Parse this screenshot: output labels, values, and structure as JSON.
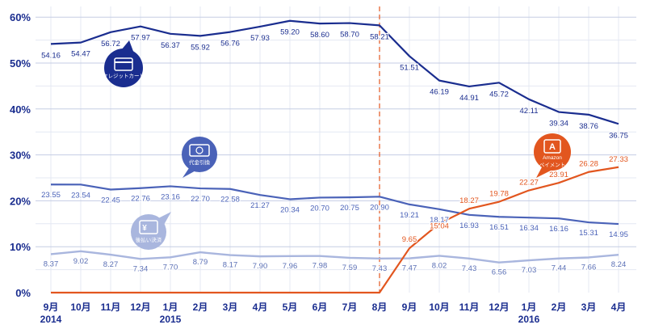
{
  "chart_data": {
    "type": "line",
    "categories": [
      {
        "month": "9月",
        "year": "2014"
      },
      {
        "month": "10月",
        "year": ""
      },
      {
        "month": "11月",
        "year": ""
      },
      {
        "month": "12月",
        "year": ""
      },
      {
        "month": "1月",
        "year": "2015"
      },
      {
        "month": "2月",
        "year": ""
      },
      {
        "month": "3月",
        "year": ""
      },
      {
        "month": "4月",
        "year": ""
      },
      {
        "month": "5月",
        "year": ""
      },
      {
        "month": "6月",
        "year": ""
      },
      {
        "month": "7月",
        "year": ""
      },
      {
        "month": "8月",
        "year": ""
      },
      {
        "month": "9月",
        "year": ""
      },
      {
        "month": "10月",
        "year": ""
      },
      {
        "month": "11月",
        "year": ""
      },
      {
        "month": "12月",
        "year": ""
      },
      {
        "month": "1月",
        "year": "2016"
      },
      {
        "month": "2月",
        "year": ""
      },
      {
        "month": "3月",
        "year": ""
      },
      {
        "month": "4月",
        "year": ""
      }
    ],
    "yticks": [
      "0%",
      "10%",
      "20%",
      "30%",
      "40%",
      "50%",
      "60%"
    ],
    "ylim": [
      0,
      63
    ],
    "grid": true,
    "divider_category_index": 11,
    "series": [
      {
        "key": "credit",
        "name": "クレジットカード",
        "color": "#1a2d8f",
        "label_color": "#1a2d8f",
        "icon": "credit-card-icon",
        "values": [
          54.16,
          54.47,
          56.72,
          57.97,
          56.37,
          55.92,
          56.76,
          57.93,
          59.2,
          58.6,
          58.7,
          58.21,
          51.51,
          46.19,
          44.91,
          45.72,
          42.11,
          39.34,
          38.76,
          36.75
        ],
        "labels": [
          "54.16",
          "54.47",
          "56.72",
          "57.97",
          "56.37",
          "55.92",
          "56.76",
          "57.93",
          "59.20",
          "58.60",
          "58.70",
          "58.21",
          "51.51",
          "46.19",
          "44.91",
          "45.72",
          "42.11",
          "39.34",
          "38.76",
          "36.75"
        ]
      },
      {
        "key": "cod",
        "name": "代金引換",
        "color": "#4a62b8",
        "label_color": "#4a62b8",
        "icon": "cash-bill-icon",
        "values": [
          23.55,
          23.54,
          22.45,
          22.76,
          23.16,
          22.7,
          22.58,
          21.27,
          20.34,
          20.7,
          20.75,
          20.9,
          19.21,
          18.17,
          16.93,
          16.51,
          16.34,
          16.16,
          15.31,
          14.95
        ],
        "labels": [
          "23.55",
          "23.54",
          "22.45",
          "22.76",
          "23.16",
          "22.70",
          "22.58",
          "21.27",
          "20.34",
          "20.70",
          "20.75",
          "20.90",
          "19.21",
          "18.17",
          "16.93",
          "16.51",
          "16.34",
          "16.16",
          "15.31",
          "14.95"
        ]
      },
      {
        "key": "invoice",
        "name": "後払い決済",
        "color": "#a9b6de",
        "label_color": "#5a6fb5",
        "icon": "yen-invoice-icon",
        "values": [
          8.37,
          9.02,
          8.27,
          7.34,
          7.7,
          8.79,
          8.17,
          7.9,
          7.96,
          7.98,
          7.59,
          7.43,
          7.47,
          8.02,
          7.43,
          6.56,
          7.03,
          7.44,
          7.66,
          8.24
        ],
        "labels": [
          "8.37",
          "9.02",
          "8.27",
          "7.34",
          "7.70",
          "8.79",
          "8.17",
          "7.90",
          "7.96",
          "7.98",
          "7.59",
          "7.43",
          "7.47",
          "8.02",
          "7.43",
          "6.56",
          "7.03",
          "7.44",
          "7.66",
          "8.24"
        ]
      },
      {
        "key": "amazon",
        "name": "Amazon ペイメント",
        "color": "#e2561f",
        "label_color": "#e2561f",
        "icon": "amazon-a-icon",
        "icon_letter": "A",
        "values": [
          0,
          0,
          0,
          0,
          0,
          0,
          0,
          0,
          0,
          0,
          0,
          0,
          9.65,
          15.04,
          18.27,
          19.78,
          22.27,
          23.91,
          26.28,
          27.33
        ],
        "labels": [
          "",
          "",
          "",
          "",
          "",
          "",
          "",
          "",
          "",
          "",
          "",
          "",
          "9.65",
          "15.04",
          "18.27",
          "19.78",
          "22.27",
          "23.91",
          "26.28",
          "27.33"
        ]
      }
    ]
  }
}
